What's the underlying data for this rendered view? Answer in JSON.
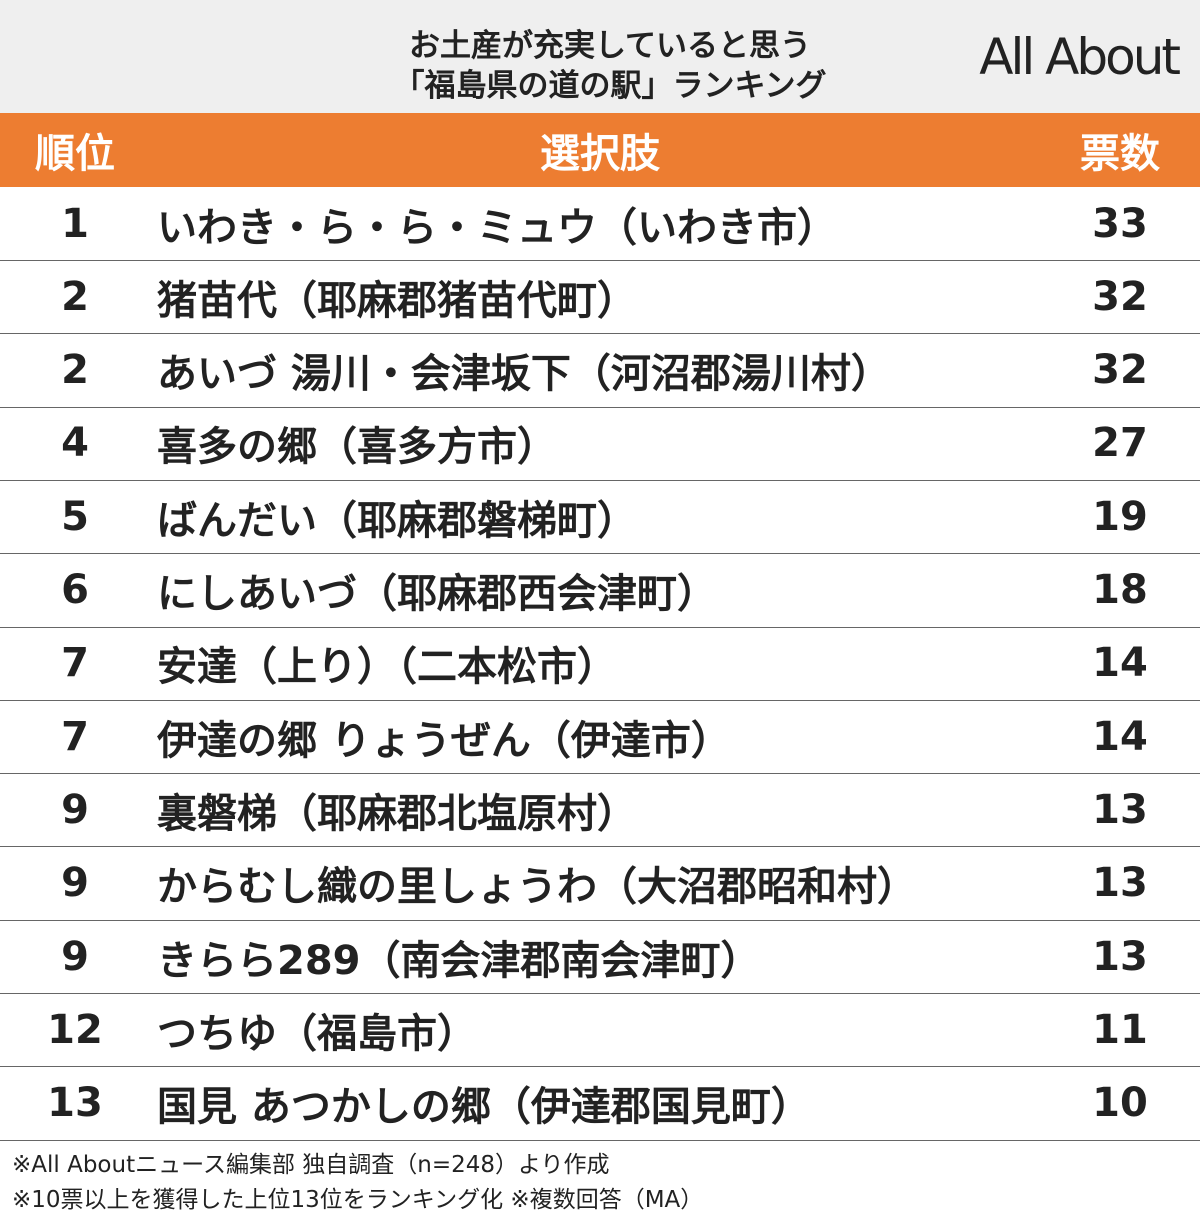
{
  "header": {
    "title_lines": [
      "お土産が充実していると思う",
      "「福島県の道の駅」ランキング"
    ],
    "logo": "All About"
  },
  "table": {
    "columns": [
      "順位",
      "選択肢",
      "票数"
    ],
    "rows": [
      [
        1,
        "いわき・ら・ら・ミュウ（いわき市）",
        33
      ],
      [
        2,
        "猪苗代（耶麻郡猪苗代町）",
        32
      ],
      [
        2,
        "あいづ 湯川・会津坂下（河沼郡湯川村）",
        32
      ],
      [
        4,
        "喜多の郷（喜多方市）",
        27
      ],
      [
        5,
        "ばんだい（耶麻郡磐梯町）",
        19
      ],
      [
        6,
        "にしあいづ（耶麻郡西会津町）",
        18
      ],
      [
        7,
        "安達（上り）（二本松市）",
        14
      ],
      [
        7,
        "伊達の郷 りょうぜん（伊達市）",
        14
      ],
      [
        9,
        "裏磐梯（耶麻郡北塩原村）",
        13
      ],
      [
        9,
        "からむし織の里しょうわ（大沼郡昭和村）",
        13
      ],
      [
        9,
        "きらら289（南会津郡南会津町）",
        13
      ],
      [
        12,
        "つちゆ（福島市）",
        11
      ],
      [
        13,
        "国見 あつかしの郷（伊達郡国見町）",
        10
      ]
    ]
  },
  "footnotes": [
    "※All Aboutニュース編集部 独自調査（n=248）より作成",
    "※10票以上を獲得した上位13位をランキング化 ※複数回答（MA）"
  ]
}
